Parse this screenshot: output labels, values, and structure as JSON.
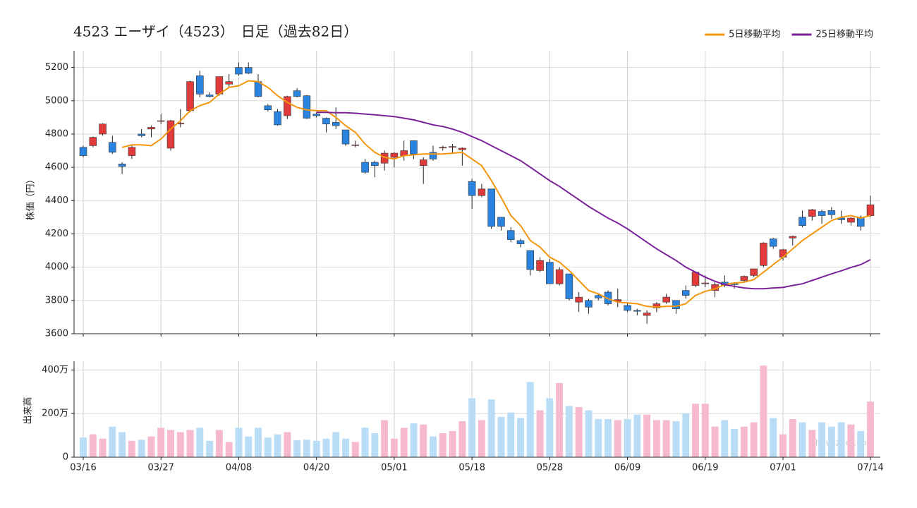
{
  "chart_data": [
    {
      "type": "candlestick",
      "title": "4523 エーザイ（4523）　日足（過去82日）",
      "ylabel": "株価（円）",
      "open": [
        4720,
        4730,
        4800,
        4750,
        4620,
        4670,
        4800,
        4830,
        4880,
        4715,
        4860,
        4940,
        5150,
        5035,
        5040,
        5100,
        5200,
        5200,
        5115,
        4970,
        4935,
        4910,
        5060,
        5030,
        4920,
        4895,
        4870,
        4825,
        4735,
        4630,
        4630,
        4625,
        4660,
        4670,
        4760,
        4610,
        4690,
        4720,
        4720,
        4705,
        4515,
        4430,
        4470,
        4300,
        4220,
        4160,
        4100,
        3980,
        4030,
        3900,
        3960,
        3790,
        3800,
        3830,
        3850,
        3795,
        3770,
        3740,
        3710,
        3755,
        3790,
        3800,
        3860,
        3890,
        3900,
        3860,
        3910,
        3905,
        3920,
        3950,
        4010,
        4170,
        4060,
        4175,
        4300,
        4305,
        4335,
        4340,
        4295,
        4270,
        4300,
        4310
      ],
      "high": [
        4730,
        4785,
        4865,
        4790,
        4630,
        4730,
        4830,
        4850,
        4920,
        4885,
        4950,
        5120,
        5180,
        5050,
        5145,
        5160,
        5230,
        5230,
        5160,
        4980,
        4950,
        5030,
        5075,
        5035,
        4930,
        4900,
        4960,
        4825,
        4760,
        4650,
        4640,
        4700,
        4690,
        4760,
        4760,
        4660,
        4730,
        4730,
        4740,
        4720,
        4530,
        4500,
        4470,
        4300,
        4240,
        4170,
        4100,
        4060,
        4050,
        4000,
        3960,
        3850,
        3810,
        3840,
        3860,
        3870,
        3780,
        3750,
        3740,
        3790,
        3840,
        3800,
        3890,
        3970,
        3950,
        3910,
        3950,
        3910,
        3950,
        3990,
        4150,
        4175,
        4110,
        4190,
        4340,
        4350,
        4345,
        4360,
        4340,
        4300,
        4310,
        4430
      ],
      "low": [
        4660,
        4720,
        4790,
        4680,
        4560,
        4650,
        4780,
        4780,
        4860,
        4700,
        4840,
        4930,
        5020,
        5020,
        5030,
        5080,
        5150,
        5160,
        5020,
        4935,
        4850,
        4890,
        5020,
        4890,
        4900,
        4810,
        4830,
        4730,
        4720,
        4560,
        4540,
        4580,
        4600,
        4640,
        4650,
        4500,
        4640,
        4700,
        4680,
        4610,
        4350,
        4420,
        4230,
        4220,
        4150,
        4120,
        3950,
        3970,
        3900,
        3890,
        3800,
        3730,
        3720,
        3800,
        3770,
        3760,
        3730,
        3710,
        3660,
        3730,
        3780,
        3720,
        3810,
        3880,
        3880,
        3820,
        3880,
        3870,
        3910,
        3940,
        4000,
        4110,
        4040,
        4130,
        4240,
        4280,
        4260,
        4290,
        4260,
        4250,
        4220,
        4300
      ],
      "close": [
        4670,
        4780,
        4860,
        4690,
        4605,
        4720,
        4790,
        4840,
        4880,
        4880,
        4865,
        5115,
        5040,
        5025,
        5145,
        5115,
        5160,
        5165,
        5025,
        4945,
        4855,
        5025,
        5025,
        4895,
        4910,
        4860,
        4850,
        4740,
        4735,
        4570,
        4610,
        4685,
        4685,
        4700,
        4680,
        4645,
        4650,
        4720,
        4725,
        4715,
        4430,
        4470,
        4245,
        4245,
        4165,
        4140,
        3985,
        4040,
        3900,
        3985,
        3810,
        3820,
        3760,
        3815,
        3780,
        3805,
        3740,
        3735,
        3725,
        3780,
        3820,
        3750,
        3830,
        3970,
        3905,
        3895,
        3890,
        3895,
        3945,
        3990,
        4145,
        4125,
        4105,
        4185,
        4250,
        4345,
        4310,
        4315,
        4285,
        4295,
        4245,
        4375
      ],
      "up_color": "#e03a3a",
      "down_color": "#2a84df",
      "series": [
        {
          "name": "5日移動平均",
          "color": "#f5960f",
          "values": [
            null,
            null,
            null,
            null,
            4720,
            4735,
            4735,
            4730,
            4770,
            4830,
            4880,
            4940,
            4970,
            4990,
            5040,
            5080,
            5090,
            5120,
            5115,
            5080,
            5030,
            4990,
            4960,
            4945,
            4940,
            4940,
            4900,
            4850,
            4810,
            4740,
            4690,
            4660,
            4650,
            4670,
            4675,
            4680,
            4680,
            4680,
            4685,
            4690,
            4650,
            4610,
            4520,
            4420,
            4310,
            4250,
            4160,
            4120,
            4060,
            4030,
            3980,
            3920,
            3860,
            3840,
            3810,
            3790,
            3785,
            3780,
            3765,
            3760,
            3765,
            3765,
            3780,
            3830,
            3855,
            3870,
            3895,
            3905,
            3910,
            3925,
            3970,
            4015,
            4060,
            4110,
            4160,
            4200,
            4240,
            4280,
            4300,
            4310,
            4295,
            4310
          ]
        },
        {
          "name": "25日移動平均",
          "color": "#7b229a",
          "values": [
            null,
            null,
            null,
            null,
            null,
            null,
            null,
            null,
            null,
            null,
            null,
            null,
            null,
            null,
            null,
            null,
            null,
            null,
            null,
            null,
            null,
            null,
            null,
            null,
            4930,
            4930,
            4928,
            4928,
            4925,
            4920,
            4915,
            4910,
            4905,
            4895,
            4885,
            4870,
            4855,
            4845,
            4830,
            4810,
            4785,
            4760,
            4730,
            4700,
            4670,
            4640,
            4600,
            4560,
            4520,
            4485,
            4445,
            4405,
            4365,
            4330,
            4295,
            4265,
            4230,
            4190,
            4150,
            4110,
            4075,
            4040,
            4000,
            3970,
            3940,
            3915,
            3895,
            3885,
            3875,
            3870,
            3870,
            3875,
            3878,
            3890,
            3900,
            3920,
            3940,
            3960,
            3978,
            3998,
            4015,
            4045
          ]
        }
      ],
      "ylim": [
        3600,
        5300
      ],
      "yticks": [
        3600,
        3800,
        4000,
        4200,
        4400,
        4600,
        4800,
        5000,
        5200
      ],
      "grid": true,
      "legend": "upper right"
    },
    {
      "type": "bar",
      "ylabel": "出来高",
      "watermark": "show-zeet.com",
      "categories": [
        "03/16",
        null,
        null,
        null,
        null,
        null,
        null,
        null,
        "03/27",
        null,
        null,
        null,
        null,
        null,
        null,
        null,
        "04/08",
        null,
        null,
        null,
        null,
        null,
        null,
        null,
        "04/20",
        null,
        null,
        null,
        null,
        null,
        null,
        null,
        "05/01",
        null,
        null,
        null,
        null,
        null,
        null,
        null,
        "05/18",
        null,
        null,
        null,
        null,
        null,
        null,
        null,
        "05/28",
        null,
        null,
        null,
        null,
        null,
        null,
        null,
        "06/09",
        null,
        null,
        null,
        null,
        null,
        null,
        null,
        "06/19",
        null,
        null,
        null,
        null,
        null,
        null,
        null,
        "07/01",
        null,
        null,
        null,
        null,
        null,
        null,
        null,
        null,
        "07/14"
      ],
      "values": [
        90,
        105,
        85,
        140,
        115,
        75,
        80,
        95,
        135,
        125,
        115,
        125,
        135,
        75,
        125,
        70,
        135,
        95,
        135,
        90,
        105,
        115,
        78,
        80,
        75,
        85,
        115,
        85,
        70,
        135,
        110,
        170,
        85,
        135,
        155,
        150,
        95,
        110,
        120,
        165,
        270,
        170,
        265,
        185,
        205,
        180,
        345,
        215,
        270,
        340,
        235,
        230,
        215,
        175,
        175,
        170,
        175,
        195,
        195,
        170,
        170,
        165,
        200,
        245,
        245,
        140,
        170,
        130,
        140,
        160,
        420,
        180,
        105,
        175,
        160,
        125,
        160,
        140,
        160,
        150,
        120,
        255
      ],
      "up_color": "#f6b9d0",
      "down_color": "#b9ddf6",
      "ylim": [
        0,
        440
      ],
      "yticks": [
        0,
        {
          "value": 200,
          "label": "200万"
        },
        {
          "value": 400,
          "label": "400万"
        }
      ],
      "grid": true
    }
  ]
}
